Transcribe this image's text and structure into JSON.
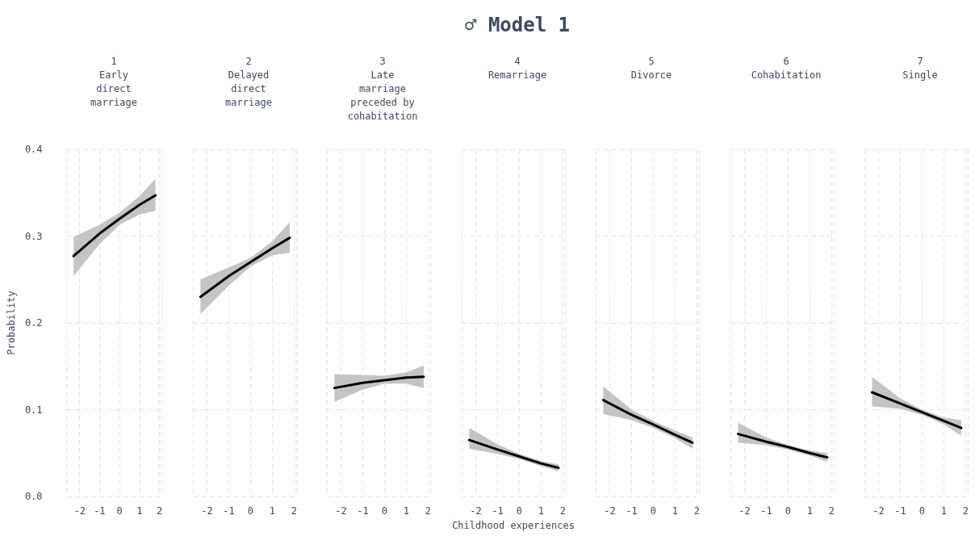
{
  "chart_data": [
    {
      "type": "line",
      "subtitle": "1\nEarly\ndirect\nmarriage",
      "ylabel": "Probability",
      "x": [
        -2.3,
        -1,
        0,
        1,
        1.8
      ],
      "xlim": [
        -2.65,
        2.1
      ],
      "xticks": [
        -2,
        -1,
        0,
        1,
        2
      ],
      "ylim": [
        0,
        0.4
      ],
      "yticks": [
        {
          "value": 0,
          "label": "0.0"
        },
        0.1,
        0.2,
        0.3,
        0.4
      ],
      "grid": true,
      "marker": "none",
      "line_style": "solid",
      "series": [
        {
          "color": "#000000",
          "values": [
            0.277,
            0.303,
            0.32,
            0.336,
            0.347
          ],
          "lower": [
            0.254,
            0.291,
            0.313,
            0.325,
            0.329
          ],
          "upper": [
            0.299,
            0.313,
            0.327,
            0.346,
            0.366
          ]
        }
      ]
    },
    {
      "type": "line",
      "subtitle": "2\nDelayed\ndirect\nmarriage",
      "x": [
        -2.3,
        -1,
        0,
        1,
        1.8
      ],
      "xlim": [
        -2.65,
        2.1
      ],
      "xticks": [
        -2,
        -1,
        0,
        1,
        2
      ],
      "ylim": [
        0,
        0.4
      ],
      "yticks": [
        0,
        0.1,
        0.2,
        0.3,
        0.4
      ],
      "grid": true,
      "marker": "none",
      "line_style": "solid",
      "tick_labels": "x",
      "series": [
        {
          "color": "#000000",
          "values": [
            0.23,
            0.254,
            0.27,
            0.286,
            0.298
          ],
          "lower": [
            0.21,
            0.243,
            0.265,
            0.278,
            0.281
          ],
          "upper": [
            0.25,
            0.264,
            0.275,
            0.294,
            0.316
          ]
        }
      ]
    },
    {
      "type": "line",
      "subtitle": "3\nLate\nmarriage\npreceded by\ncohabitation",
      "x": [
        -2.3,
        -1,
        0,
        1,
        1.8
      ],
      "xlim": [
        -2.65,
        2.1
      ],
      "xticks": [
        -2,
        -1,
        0,
        1,
        2
      ],
      "ylim": [
        0,
        0.4
      ],
      "yticks": [
        0,
        0.1,
        0.2,
        0.3,
        0.4
      ],
      "grid": true,
      "marker": "none",
      "line_style": "solid",
      "tick_labels": "x",
      "series": [
        {
          "color": "#000000",
          "values": [
            0.125,
            0.131,
            0.134,
            0.137,
            0.138
          ],
          "lower": [
            0.109,
            0.123,
            0.13,
            0.13,
            0.125
          ],
          "upper": [
            0.141,
            0.14,
            0.139,
            0.143,
            0.151
          ]
        }
      ]
    },
    {
      "type": "line",
      "title": "♂ Model 1",
      "subtitle": "4\nRemarriage",
      "xlabel": "Childhood experiences",
      "x": [
        -2.3,
        -1,
        0,
        1,
        1.8
      ],
      "xlim": [
        -2.65,
        2.1
      ],
      "xticks": [
        -2,
        -1,
        0,
        1,
        2
      ],
      "ylim": [
        0,
        0.4
      ],
      "yticks": [
        0,
        0.1,
        0.2,
        0.3,
        0.4
      ],
      "grid": true,
      "marker": "none",
      "line_style": "solid",
      "tick_labels": "x",
      "series": [
        {
          "color": "#000000",
          "values": [
            0.065,
            0.054,
            0.046,
            0.038,
            0.033
          ],
          "lower": [
            0.055,
            0.049,
            0.043,
            0.035,
            0.029
          ],
          "upper": [
            0.079,
            0.06,
            0.049,
            0.041,
            0.037
          ]
        }
      ]
    },
    {
      "type": "line",
      "subtitle": "5\nDivorce",
      "x": [
        -2.3,
        -1,
        0,
        1,
        1.8
      ],
      "xlim": [
        -2.65,
        2.1
      ],
      "xticks": [
        -2,
        -1,
        0,
        1,
        2
      ],
      "ylim": [
        0,
        0.4
      ],
      "yticks": [
        0,
        0.1,
        0.2,
        0.3,
        0.4
      ],
      "grid": true,
      "marker": "none",
      "line_style": "solid",
      "tick_labels": "x",
      "series": [
        {
          "color": "#000000",
          "values": [
            0.111,
            0.094,
            0.083,
            0.071,
            0.062
          ],
          "lower": [
            0.095,
            0.088,
            0.079,
            0.067,
            0.055
          ],
          "upper": [
            0.127,
            0.1,
            0.087,
            0.076,
            0.068
          ]
        }
      ]
    },
    {
      "type": "line",
      "subtitle": "6\nCohabitation",
      "x": [
        -2.3,
        -1,
        0,
        1,
        1.8
      ],
      "xlim": [
        -2.65,
        2.1
      ],
      "xticks": [
        -2,
        -1,
        0,
        1,
        2
      ],
      "ylim": [
        0,
        0.4
      ],
      "yticks": [
        0,
        0.1,
        0.2,
        0.3,
        0.4
      ],
      "grid": true,
      "marker": "none",
      "line_style": "solid",
      "tick_labels": "x",
      "series": [
        {
          "color": "#000000",
          "values": [
            0.072,
            0.063,
            0.057,
            0.05,
            0.045
          ],
          "lower": [
            0.062,
            0.059,
            0.054,
            0.047,
            0.04
          ],
          "upper": [
            0.085,
            0.068,
            0.059,
            0.053,
            0.05
          ]
        }
      ]
    },
    {
      "type": "line",
      "subtitle": "7\nSingle",
      "x": [
        -2.3,
        -1,
        0,
        1,
        1.8
      ],
      "xlim": [
        -2.65,
        2.1
      ],
      "xticks": [
        -2,
        -1,
        0,
        1,
        2
      ],
      "ylim": [
        0,
        0.4
      ],
      "yticks": [
        0,
        0.1,
        0.2,
        0.3,
        0.4
      ],
      "grid": true,
      "marker": "none",
      "line_style": "solid",
      "tick_labels": "x",
      "series": [
        {
          "color": "#000000",
          "values": [
            0.12,
            0.107,
            0.097,
            0.087,
            0.079
          ],
          "lower": [
            0.104,
            0.101,
            0.094,
            0.083,
            0.07
          ],
          "upper": [
            0.138,
            0.113,
            0.1,
            0.091,
            0.088
          ]
        }
      ]
    }
  ]
}
